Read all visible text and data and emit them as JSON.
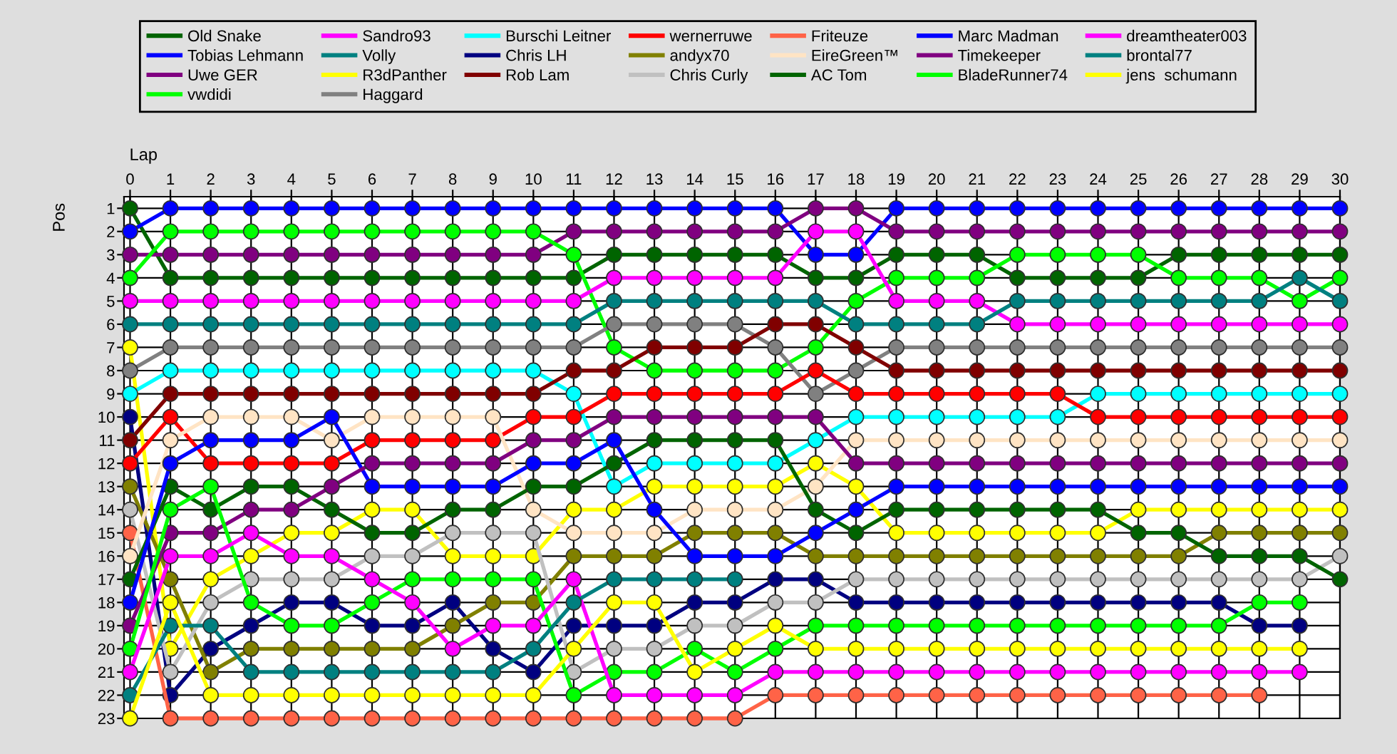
{
  "chart_data": {
    "type": "line",
    "xlabel": "Lap",
    "ylabel": "Pos",
    "x": [
      0,
      1,
      2,
      3,
      4,
      5,
      6,
      7,
      8,
      9,
      10,
      11,
      12,
      13,
      14,
      15,
      16,
      17,
      18,
      19,
      20,
      21,
      22,
      23,
      24,
      25,
      26,
      27,
      28,
      29,
      30
    ],
    "xlim": [
      -0.15,
      30
    ],
    "xticks": [
      0,
      1,
      2,
      3,
      4,
      5,
      6,
      7,
      8,
      9,
      10,
      11,
      12,
      13,
      14,
      15,
      16,
      17,
      18,
      19,
      20,
      21,
      22,
      23,
      24,
      25,
      26,
      27,
      28,
      29,
      30
    ],
    "ylim": [
      23,
      0.5
    ],
    "yticks": [
      1,
      2,
      3,
      4,
      5,
      6,
      7,
      8,
      9,
      10,
      11,
      12,
      13,
      14,
      15,
      16,
      17,
      18,
      19,
      20,
      21,
      22,
      23
    ],
    "grid": true,
    "legend": "top",
    "marker": "circle",
    "line_style": "solid",
    "series": [
      {
        "name": "Old Snake",
        "color": "#006400",
        "values": [
          1,
          4,
          4,
          4,
          4,
          4,
          4,
          4,
          4,
          4,
          4,
          4,
          3,
          3,
          3,
          3,
          3,
          4,
          4,
          3,
          3,
          3,
          4,
          4,
          4,
          4,
          3,
          3,
          3,
          3,
          3
        ]
      },
      {
        "name": "Tobias Lehmann",
        "color": "#0000ff",
        "values": [
          2,
          1,
          1,
          1,
          1,
          1,
          1,
          1,
          1,
          1,
          1,
          1,
          1,
          1,
          1,
          1,
          1,
          3,
          3,
          1,
          1,
          1,
          1,
          1,
          1,
          1,
          1,
          1,
          1,
          1,
          1
        ]
      },
      {
        "name": "Uwe GER",
        "color": "#800080",
        "values": [
          3,
          3,
          3,
          3,
          3,
          3,
          3,
          3,
          3,
          3,
          3,
          2,
          2,
          2,
          2,
          2,
          2,
          1,
          1,
          2,
          2,
          2,
          2,
          2,
          2,
          2,
          2,
          2,
          2,
          2,
          2
        ]
      },
      {
        "name": "vwdidi",
        "color": "#00ff00",
        "values": [
          4,
          2,
          2,
          2,
          2,
          2,
          2,
          2,
          2,
          2,
          2,
          3,
          7,
          8,
          8,
          8,
          8,
          7,
          5,
          4,
          4,
          4,
          3,
          3,
          3,
          3,
          4,
          4,
          4,
          5,
          4
        ]
      },
      {
        "name": "Sandro93",
        "color": "#ff00ff",
        "values": [
          5,
          5,
          5,
          5,
          5,
          5,
          5,
          5,
          5,
          5,
          5,
          5,
          4,
          4,
          4,
          4,
          4,
          2,
          2,
          5,
          5,
          5,
          6,
          6,
          6,
          6,
          6,
          6,
          6,
          6,
          6
        ]
      },
      {
        "name": "Volly",
        "color": "#008080",
        "values": [
          6,
          6,
          6,
          6,
          6,
          6,
          6,
          6,
          6,
          6,
          6,
          6,
          5,
          5,
          5,
          5,
          5,
          5,
          6,
          6,
          6,
          6,
          5,
          5,
          5,
          5,
          5,
          5,
          5,
          4,
          5
        ]
      },
      {
        "name": "R3dPanther",
        "color": "#ffff00",
        "values": [
          7,
          20,
          17,
          16,
          15,
          15,
          14,
          14,
          16,
          16,
          16,
          14,
          14,
          13,
          13,
          13,
          13,
          12,
          13,
          15,
          15,
          15,
          15,
          15,
          15,
          14,
          14,
          14,
          14,
          14,
          14
        ]
      },
      {
        "name": "Haggard",
        "color": "#808080",
        "values": [
          8,
          7,
          7,
          7,
          7,
          7,
          7,
          7,
          7,
          7,
          7,
          7,
          6,
          6,
          6,
          6,
          7,
          9,
          8,
          7,
          7,
          7,
          7,
          7,
          7,
          7,
          7,
          7,
          7,
          7,
          7
        ]
      },
      {
        "name": "Burschi Leitner",
        "color": "#00ffff",
        "values": [
          9,
          8,
          8,
          8,
          8,
          8,
          8,
          8,
          8,
          8,
          8,
          9,
          13,
          12,
          12,
          12,
          12,
          11,
          10,
          10,
          10,
          10,
          10,
          10,
          9,
          9,
          9,
          9,
          9,
          9,
          9
        ]
      },
      {
        "name": "Chris LH",
        "color": "#000080",
        "values": [
          10,
          22,
          20,
          19,
          18,
          18,
          19,
          19,
          18,
          20,
          21,
          19,
          19,
          19,
          18,
          18,
          17,
          17,
          18,
          18,
          18,
          18,
          18,
          18,
          18,
          18,
          18,
          18,
          19,
          19,
          null
        ]
      },
      {
        "name": "Rob Lam",
        "color": "#800000",
        "values": [
          11,
          9,
          9,
          9,
          9,
          9,
          9,
          9,
          9,
          9,
          9,
          8,
          8,
          7,
          7,
          7,
          6,
          6,
          7,
          8,
          8,
          8,
          8,
          8,
          8,
          8,
          8,
          8,
          8,
          8,
          8
        ]
      },
      {
        "name": "wernerruwe",
        "color": "#ff0000",
        "values": [
          12,
          10,
          12,
          12,
          12,
          12,
          11,
          11,
          11,
          11,
          10,
          10,
          9,
          9,
          9,
          9,
          9,
          8,
          9,
          9,
          9,
          9,
          9,
          9,
          10,
          10,
          10,
          10,
          10,
          10,
          10
        ]
      },
      {
        "name": "andyx70",
        "color": "#808000",
        "values": [
          13,
          17,
          21,
          20,
          20,
          20,
          20,
          20,
          19,
          18,
          18,
          16,
          16,
          16,
          15,
          15,
          15,
          16,
          16,
          16,
          16,
          16,
          16,
          16,
          16,
          16,
          16,
          15,
          15,
          15,
          15
        ]
      },
      {
        "name": "Chris Curly",
        "color": "#c0c0c0",
        "values": [
          14,
          21,
          18,
          17,
          17,
          17,
          16,
          16,
          15,
          15,
          15,
          21,
          20,
          20,
          19,
          19,
          18,
          18,
          17,
          17,
          17,
          17,
          17,
          17,
          17,
          17,
          17,
          17,
          17,
          17,
          16
        ]
      },
      {
        "name": "Friteuze",
        "color": "#ff6347",
        "values": [
          15,
          23,
          23,
          23,
          23,
          23,
          23,
          23,
          23,
          23,
          23,
          23,
          23,
          23,
          23,
          23,
          22,
          22,
          22,
          22,
          22,
          22,
          22,
          22,
          22,
          22,
          22,
          22,
          22,
          null,
          null
        ]
      },
      {
        "name": "EireGreen™",
        "color": "#ffe4c4",
        "values": [
          16,
          11,
          10,
          10,
          10,
          11,
          10,
          10,
          10,
          10,
          14,
          15,
          15,
          15,
          14,
          14,
          14,
          13,
          11,
          11,
          11,
          11,
          11,
          11,
          11,
          11,
          11,
          11,
          11,
          11,
          11
        ]
      },
      {
        "name": "AC Tom",
        "color": "#006400",
        "values": [
          17,
          13,
          14,
          13,
          13,
          14,
          15,
          15,
          14,
          14,
          13,
          13,
          12,
          11,
          11,
          11,
          11,
          14,
          15,
          14,
          14,
          14,
          14,
          14,
          14,
          15,
          15,
          16,
          16,
          16,
          17
        ]
      },
      {
        "name": "Marc Madman",
        "color": "#0000ff",
        "values": [
          18,
          12,
          11,
          11,
          11,
          10,
          13,
          13,
          13,
          13,
          12,
          12,
          11,
          14,
          16,
          16,
          16,
          15,
          14,
          13,
          13,
          13,
          13,
          13,
          13,
          13,
          13,
          13,
          13,
          13,
          13
        ]
      },
      {
        "name": "Timekeeper",
        "color": "#800080",
        "values": [
          19,
          15,
          15,
          14,
          14,
          13,
          12,
          12,
          12,
          12,
          11,
          11,
          10,
          10,
          10,
          10,
          10,
          10,
          12,
          12,
          12,
          12,
          12,
          12,
          12,
          12,
          12,
          12,
          12,
          12,
          12
        ]
      },
      {
        "name": "BladeRunner74",
        "color": "#00ff00",
        "values": [
          20,
          14,
          13,
          18,
          19,
          19,
          18,
          17,
          17,
          17,
          17,
          22,
          21,
          21,
          20,
          21,
          20,
          19,
          19,
          19,
          19,
          19,
          19,
          19,
          19,
          19,
          19,
          19,
          18,
          18,
          null
        ]
      },
      {
        "name": "dreamtheater003",
        "color": "#ff00ff",
        "values": [
          21,
          16,
          16,
          15,
          16,
          16,
          17,
          18,
          20,
          19,
          19,
          17,
          22,
          22,
          22,
          22,
          21,
          21,
          21,
          21,
          21,
          21,
          21,
          21,
          21,
          21,
          21,
          21,
          21,
          21,
          null
        ]
      },
      {
        "name": "brontal77",
        "color": "#008080",
        "values": [
          22,
          19,
          19,
          21,
          21,
          21,
          21,
          21,
          21,
          21,
          20,
          18,
          17,
          17,
          17,
          17,
          null,
          null,
          null,
          null,
          null,
          null,
          null,
          null,
          null,
          null,
          null,
          null,
          null,
          null,
          null
        ]
      },
      {
        "name": "jens  schumann",
        "color": "#ffff00",
        "values": [
          23,
          18,
          22,
          22,
          22,
          22,
          22,
          22,
          22,
          22,
          22,
          20,
          18,
          18,
          21,
          20,
          19,
          20,
          20,
          20,
          20,
          20,
          20,
          20,
          20,
          20,
          20,
          20,
          20,
          20,
          null
        ]
      }
    ]
  }
}
